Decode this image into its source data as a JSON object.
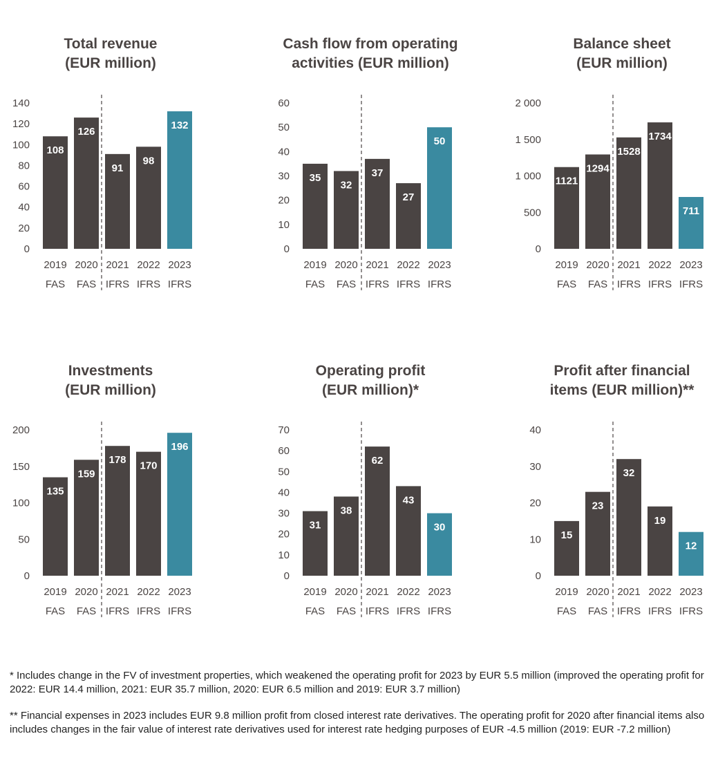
{
  "colors": {
    "historical": "#4a4443",
    "current": "#3a8aa0"
  },
  "chart_data": [
    {
      "type": "bar",
      "title": [
        "Total revenue",
        "(EUR million)"
      ],
      "categories": [
        "2019",
        "2020",
        "2021",
        "2022",
        "2023"
      ],
      "basis": [
        "FAS",
        "FAS",
        "IFRS",
        "IFRS",
        "IFRS"
      ],
      "values": [
        108,
        126,
        91,
        98,
        132
      ],
      "ylim": [
        0,
        140
      ],
      "yticks": [
        0,
        20,
        40,
        60,
        80,
        100,
        120,
        140
      ],
      "ytick_labels": [
        "0",
        "20",
        "40",
        "60",
        "80",
        "100",
        "120",
        "140"
      ],
      "highlight": "2023",
      "divider": "between 2020 and 2021"
    },
    {
      "type": "bar",
      "title": [
        "Cash flow from operating",
        "activities (EUR million)"
      ],
      "categories": [
        "2019",
        "2020",
        "2021",
        "2022",
        "2023"
      ],
      "basis": [
        "FAS",
        "FAS",
        "IFRS",
        "IFRS",
        "IFRS"
      ],
      "values": [
        35,
        32,
        37,
        27,
        50
      ],
      "ylim": [
        0,
        60
      ],
      "yticks": [
        0,
        10,
        20,
        30,
        40,
        50,
        60
      ],
      "ytick_labels": [
        "0",
        "10",
        "20",
        "30",
        "40",
        "50",
        "60"
      ],
      "highlight": "2023",
      "divider": "between 2020 and 2021"
    },
    {
      "type": "bar",
      "title": [
        "Balance sheet",
        "(EUR million)"
      ],
      "categories": [
        "2019",
        "2020",
        "2021",
        "2022",
        "2023"
      ],
      "basis": [
        "FAS",
        "FAS",
        "IFRS",
        "IFRS",
        "IFRS"
      ],
      "values": [
        1121,
        1294,
        1528,
        1734,
        711
      ],
      "ylim": [
        0,
        2000
      ],
      "yticks": [
        0,
        500,
        1000,
        1500,
        2000
      ],
      "ytick_labels": [
        "0",
        "500",
        "1 000",
        "1 500",
        "2 000"
      ],
      "highlight": "2023",
      "divider": "between 2020 and 2021"
    },
    {
      "type": "bar",
      "title": [
        "Investments",
        "(EUR million)"
      ],
      "categories": [
        "2019",
        "2020",
        "2021",
        "2022",
        "2023"
      ],
      "basis": [
        "FAS",
        "FAS",
        "IFRS",
        "IFRS",
        "IFRS"
      ],
      "values": [
        135,
        159,
        178,
        170,
        196
      ],
      "ylim": [
        0,
        200
      ],
      "yticks": [
        0,
        50,
        100,
        150,
        200
      ],
      "ytick_labels": [
        "0",
        "50",
        "100",
        "150",
        "200"
      ],
      "highlight": "2023",
      "divider": "between 2020 and 2021"
    },
    {
      "type": "bar",
      "title": [
        "Operating profit",
        "(EUR million)*"
      ],
      "categories": [
        "2019",
        "2020",
        "2021",
        "2022",
        "2023"
      ],
      "basis": [
        "FAS",
        "FAS",
        "IFRS",
        "IFRS",
        "IFRS"
      ],
      "values": [
        31,
        38,
        62,
        43,
        30
      ],
      "ylim": [
        0,
        70
      ],
      "yticks": [
        0,
        10,
        20,
        30,
        40,
        50,
        60,
        70
      ],
      "ytick_labels": [
        "0",
        "10",
        "20",
        "30",
        "40",
        "50",
        "60",
        "70"
      ],
      "highlight": "2023",
      "divider": "between 2020 and 2021"
    },
    {
      "type": "bar",
      "title": [
        "Profit after financial",
        "items (EUR million)**"
      ],
      "categories": [
        "2019",
        "2020",
        "2021",
        "2022",
        "2023"
      ],
      "basis": [
        "FAS",
        "FAS",
        "IFRS",
        "IFRS",
        "IFRS"
      ],
      "values": [
        15,
        23,
        32,
        19,
        12
      ],
      "ylim": [
        0,
        40
      ],
      "yticks": [
        0,
        10,
        20,
        30,
        40
      ],
      "ytick_labels": [
        "0",
        "10",
        "20",
        "30",
        "40"
      ],
      "highlight": "2023",
      "divider": "between 2020 and 2021"
    }
  ],
  "footnotes": [
    "* Includes change in the FV of investment properties, which weakened the operating profit for 2023 by EUR 5.5 million (improved the operating profit for 2022: EUR 14.4 million, 2021: EUR 35.7 million, 2020: EUR 6.5 million and 2019: EUR 3.7 million)",
    "** Financial expenses in 2023 includes EUR 9.8 million profit from closed interest rate derivatives. The operating profit for 2020 after financial items also includes changes in the fair value of interest rate derivatives used for interest rate hedging purposes of EUR -4.5 million (2019: EUR -7.2 million)"
  ]
}
